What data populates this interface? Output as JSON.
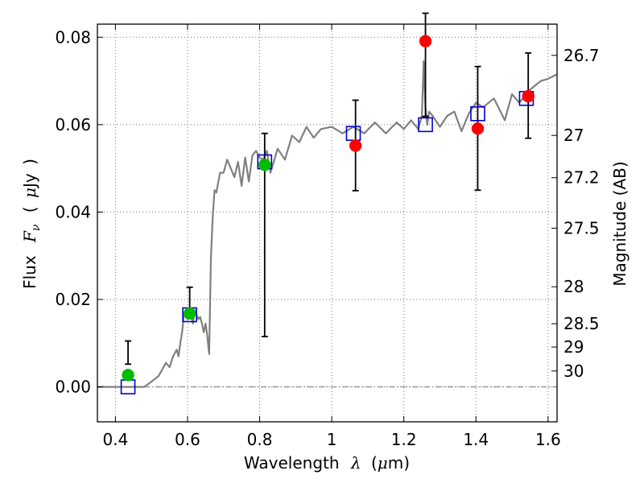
{
  "chart_data": {
    "type": "scatter",
    "xlabel": {
      "prefix": "Wavelength",
      "symbol": "λ",
      "unit_open": "(",
      "unit_mu": "μ",
      "unit_rest": "m)"
    },
    "ylabel": {
      "prefix": "Flux",
      "symbol": "F",
      "subscript": "ν",
      "unit_open": "(",
      "unit_mu": "μ",
      "unit_rest": "Jy",
      "unit_close": ")"
    },
    "y2label": "Magnitude (AB)",
    "xlim": [
      0.35,
      1.625
    ],
    "ylim": [
      -0.008,
      0.083
    ],
    "grid": true,
    "x_ticks": [
      {
        "value": 0.4,
        "label": "0.4"
      },
      {
        "value": 0.6,
        "label": "0.6"
      },
      {
        "value": 0.8,
        "label": "0.8"
      },
      {
        "value": 1.0,
        "label": "1"
      },
      {
        "value": 1.2,
        "label": "1.2"
      },
      {
        "value": 1.4,
        "label": "1.4"
      },
      {
        "value": 1.6,
        "label": "1.6"
      }
    ],
    "y_ticks": [
      {
        "value": 0.0,
        "label": "0.00"
      },
      {
        "value": 0.02,
        "label": "0.02"
      },
      {
        "value": 0.04,
        "label": "0.04"
      },
      {
        "value": 0.06,
        "label": "0.06"
      },
      {
        "value": 0.08,
        "label": "0.08"
      }
    ],
    "magnitude_ticks": [
      {
        "mag": 26.7,
        "label": "26.7"
      },
      {
        "mag": 27,
        "label": "27"
      },
      {
        "mag": 27.2,
        "label": "27.2"
      },
      {
        "mag": 27.5,
        "label": "27.5"
      },
      {
        "mag": 28,
        "label": "28"
      },
      {
        "mag": 28.5,
        "label": "28.5"
      },
      {
        "mag": 29,
        "label": "29"
      },
      {
        "mag": 30,
        "label": "30"
      }
    ],
    "colors": {
      "model": "#808080",
      "green_points": "#00bb00",
      "red_points": "#ff0000",
      "model_squares": "#0000cc",
      "errorbars": "#000000",
      "grid": "#777777"
    },
    "series": [
      {
        "kind": "model_spectrum",
        "color": "#808080",
        "x": [
          0.35,
          0.48,
          0.5,
          0.52,
          0.54,
          0.55,
          0.56,
          0.57,
          0.575,
          0.58,
          0.585,
          0.59,
          0.6,
          0.61,
          0.615,
          0.62,
          0.625,
          0.63,
          0.635,
          0.64,
          0.645,
          0.65,
          0.655,
          0.66,
          0.665,
          0.67,
          0.675,
          0.68,
          0.69,
          0.7,
          0.71,
          0.72,
          0.73,
          0.74,
          0.75,
          0.76,
          0.77,
          0.78,
          0.79,
          0.8,
          0.81,
          0.82,
          0.83,
          0.85,
          0.87,
          0.89,
          0.91,
          0.93,
          0.95,
          0.97,
          1.0,
          1.03,
          1.06,
          1.09,
          1.12,
          1.15,
          1.18,
          1.2,
          1.22,
          1.24,
          1.25,
          1.255,
          1.26,
          1.265,
          1.27,
          1.28,
          1.3,
          1.32,
          1.34,
          1.36,
          1.38,
          1.4,
          1.42,
          1.45,
          1.48,
          1.5,
          1.52,
          1.55,
          1.58,
          1.6,
          1.625
        ],
        "y": [
          0.0,
          0.0,
          0.0012,
          0.0025,
          0.0055,
          0.0045,
          0.007,
          0.0085,
          0.007,
          0.01,
          0.0125,
          0.0165,
          0.0155,
          0.0165,
          0.0145,
          0.0175,
          0.0165,
          0.0155,
          0.016,
          0.0145,
          0.0125,
          0.0145,
          0.0115,
          0.0075,
          0.03,
          0.039,
          0.045,
          0.0445,
          0.049,
          0.049,
          0.052,
          0.05,
          0.048,
          0.0515,
          0.046,
          0.0525,
          0.047,
          0.053,
          0.054,
          0.0525,
          0.052,
          0.054,
          0.049,
          0.0545,
          0.052,
          0.0575,
          0.056,
          0.0595,
          0.057,
          0.059,
          0.0595,
          0.058,
          0.0595,
          0.058,
          0.0605,
          0.058,
          0.0605,
          0.059,
          0.061,
          0.059,
          0.062,
          0.0745,
          0.064,
          0.06,
          0.063,
          0.062,
          0.0595,
          0.062,
          0.063,
          0.0585,
          0.0625,
          0.065,
          0.064,
          0.066,
          0.061,
          0.067,
          0.065,
          0.068,
          0.07,
          0.0705,
          0.0715
        ]
      },
      {
        "kind": "model_bandpass",
        "color": "#0000cc",
        "x": [
          0.435,
          0.606,
          0.814,
          1.06,
          1.26,
          1.405,
          1.54
        ],
        "y": [
          0.0,
          0.0165,
          0.0515,
          0.058,
          0.06,
          0.0625,
          0.066
        ]
      },
      {
        "kind": "observed_green",
        "color": "#00bb00",
        "x": [
          0.435,
          0.606,
          0.814
        ],
        "y": [
          0.0027,
          0.0168,
          0.0508
        ],
        "err_low": [
          0.0052,
          0.0168,
          0.0115
        ],
        "err_high": [
          0.0105,
          0.0228,
          0.058
        ]
      },
      {
        "kind": "observed_red",
        "color": "#ff0000",
        "x": [
          1.066,
          1.26,
          1.405,
          1.545
        ],
        "y": [
          0.0552,
          0.0791,
          0.0591,
          0.0665
        ],
        "err_low": [
          0.0449,
          0.0619,
          0.045,
          0.0569
        ],
        "err_high": [
          0.0656,
          0.0855,
          0.0733,
          0.0764
        ]
      }
    ]
  }
}
